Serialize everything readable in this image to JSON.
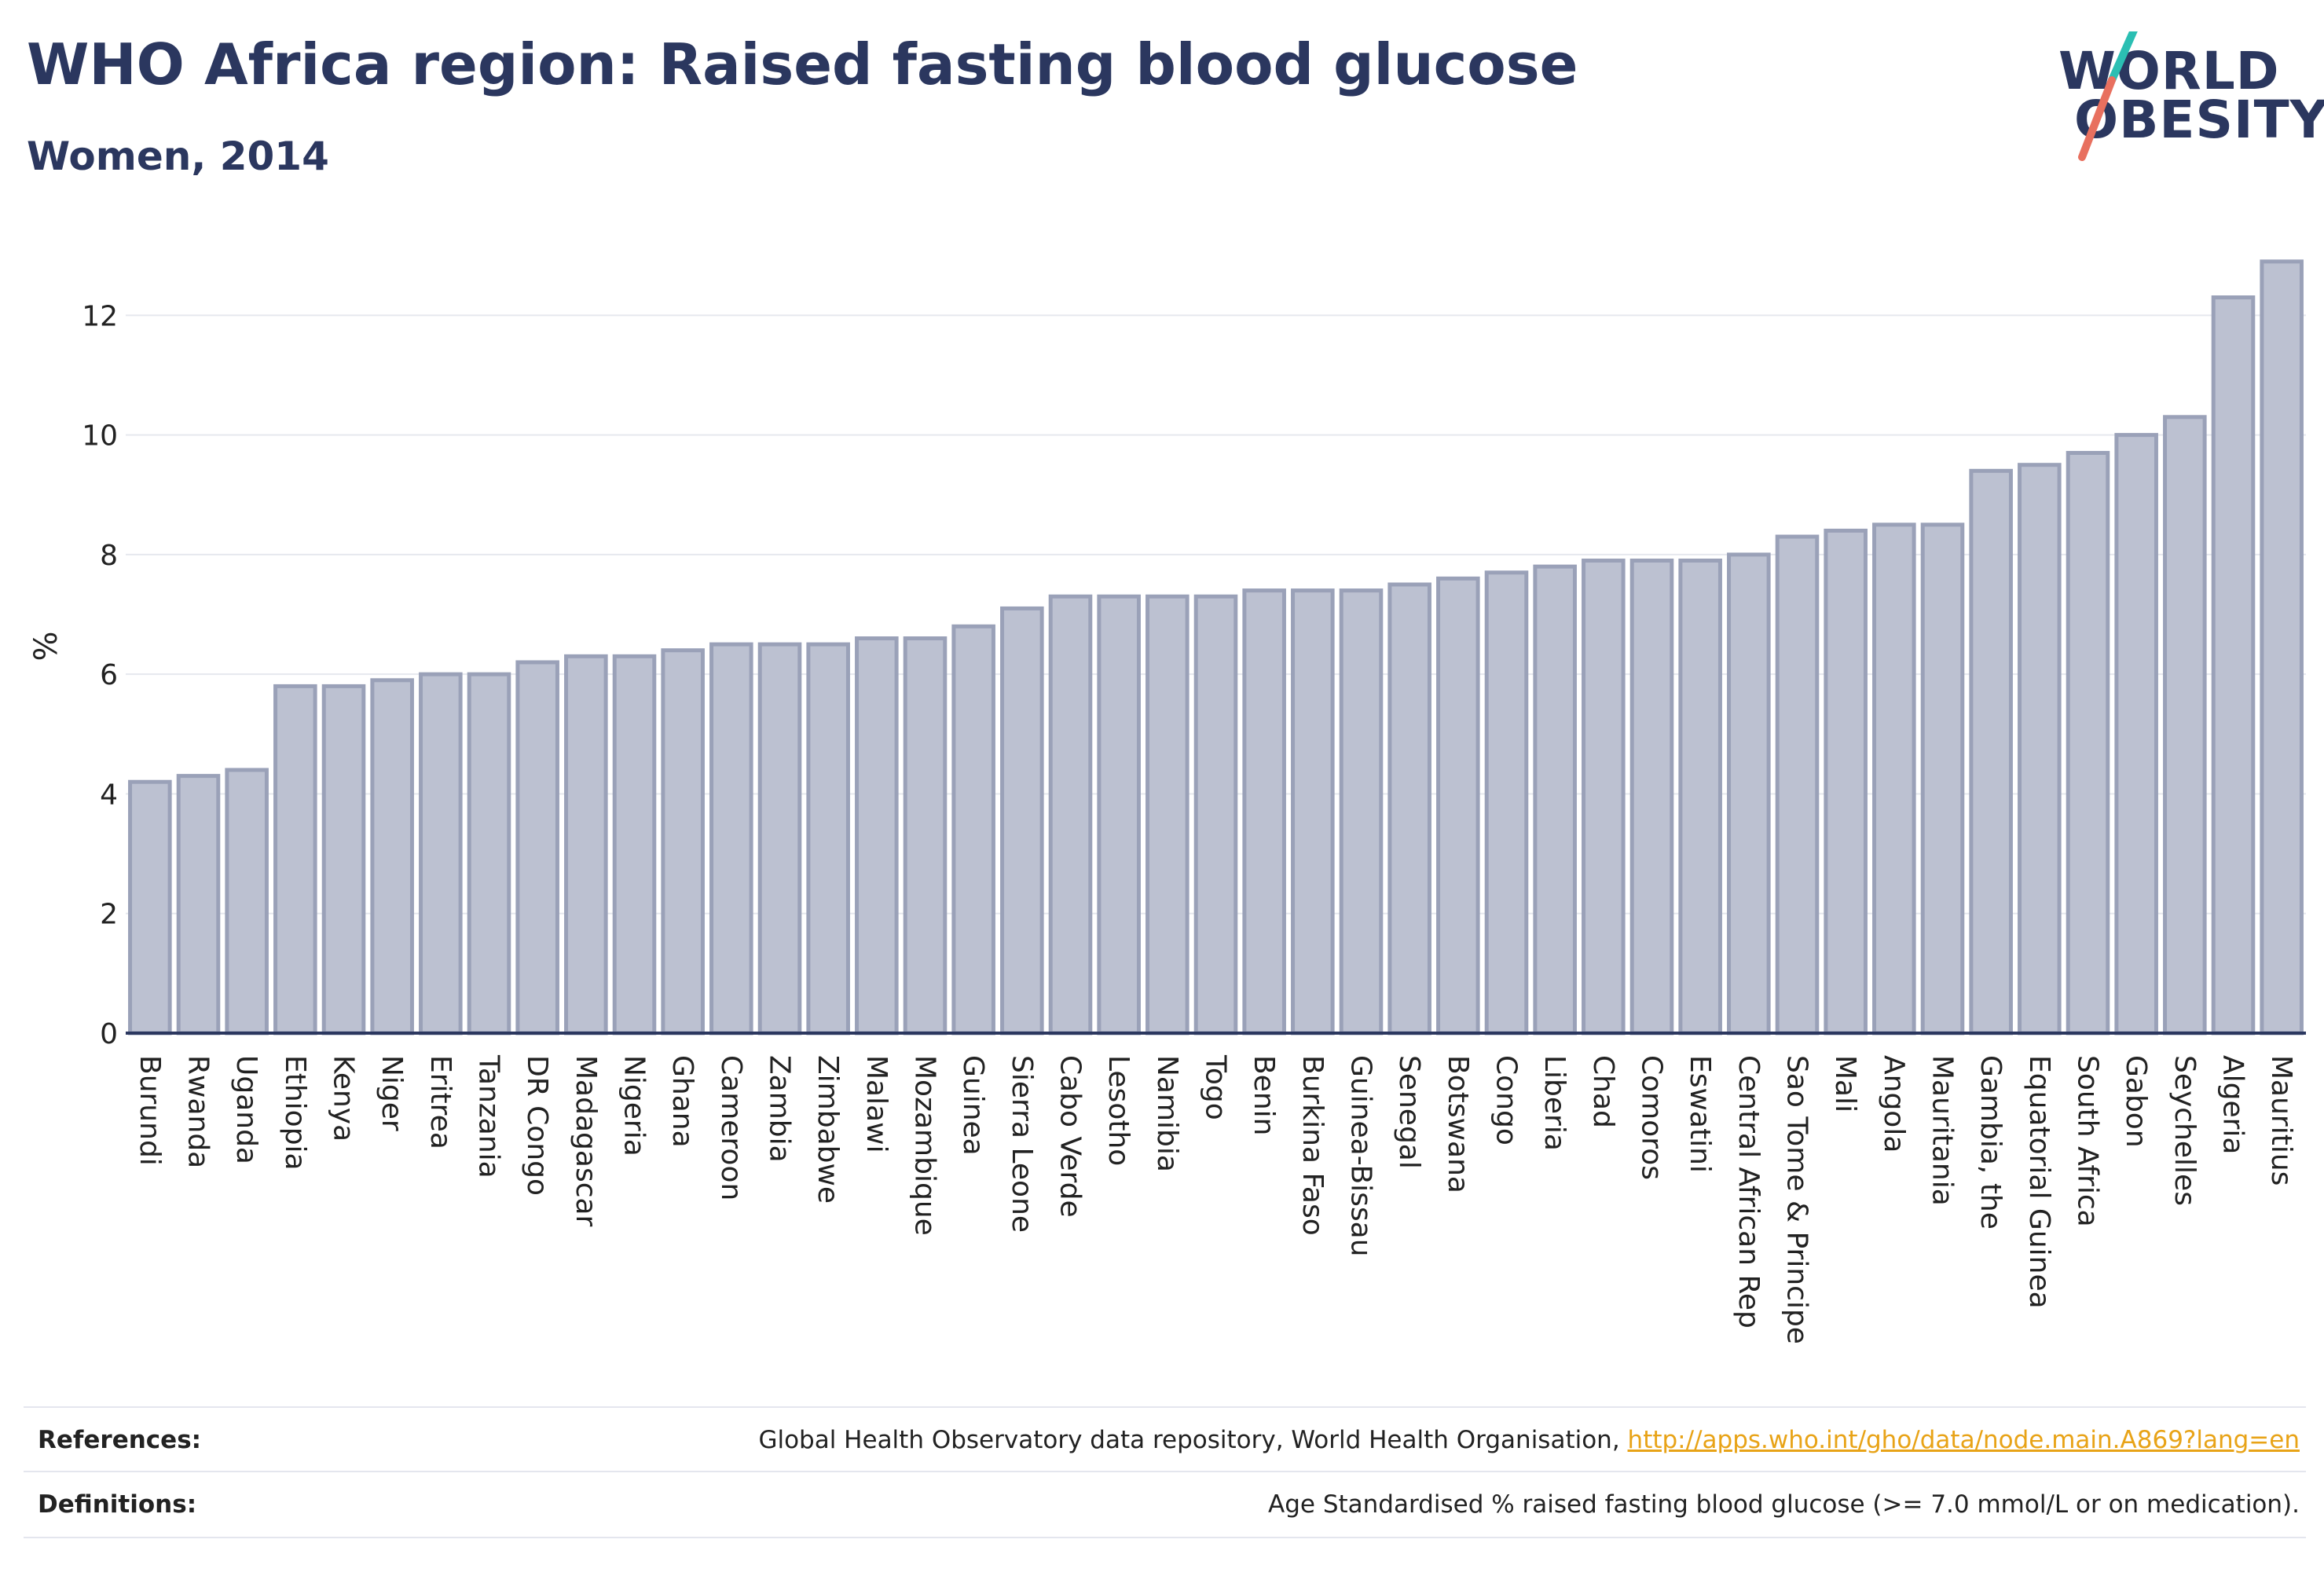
{
  "header": {
    "title": "WHO Africa region: Raised fasting blood glucose",
    "subtitle": "Women, 2014"
  },
  "logo": {
    "line1": "WORLD",
    "line2": "OBESITY",
    "colors": {
      "text": "#2b375f",
      "slash_top": "#2bbfb3",
      "slash_bottom": "#e8705f"
    }
  },
  "chart_data": {
    "type": "bar",
    "title": "WHO Africa region: Raised fasting blood glucose",
    "subtitle": "Women, 2014",
    "xlabel": "",
    "ylabel": "%",
    "ylim": [
      0,
      13.2
    ],
    "yticks": [
      0,
      2,
      4,
      6,
      8,
      10,
      12
    ],
    "grid": true,
    "legend": "none",
    "colors": {
      "bar_fill": "#bcc1d1",
      "bar_stroke": "#9aa1b8",
      "grid": "#e6e8ee",
      "axis": "#2b375f"
    },
    "categories": [
      "Burundi",
      "Rwanda",
      "Uganda",
      "Ethiopia",
      "Kenya",
      "Niger",
      "Eritrea",
      "Tanzania",
      "DR Congo",
      "Madagascar",
      "Nigeria",
      "Ghana",
      "Cameroon",
      "Zambia",
      "Zimbabwe",
      "Malawi",
      "Mozambique",
      "Guinea",
      "Sierra Leone",
      "Cabo Verde",
      "Lesotho",
      "Namibia",
      "Togo",
      "Benin",
      "Burkina Faso",
      "Guinea-Bissau",
      "Senegal",
      "Botswana",
      "Congo",
      "Liberia",
      "Chad",
      "Comoros",
      "Eswatini",
      "Central African Rep",
      "Sao Tome & Principe",
      "Mali",
      "Angola",
      "Mauritania",
      "Gambia, the",
      "Equatorial Guinea",
      "South Africa",
      "Gabon",
      "Seychelles",
      "Algeria",
      "Mauritius"
    ],
    "values": [
      4.2,
      4.3,
      4.4,
      5.8,
      5.8,
      5.9,
      6.0,
      6.0,
      6.2,
      6.3,
      6.3,
      6.4,
      6.5,
      6.5,
      6.5,
      6.6,
      6.6,
      6.8,
      7.1,
      7.3,
      7.3,
      7.3,
      7.3,
      7.4,
      7.4,
      7.4,
      7.5,
      7.6,
      7.7,
      7.8,
      7.9,
      7.9,
      7.9,
      8.0,
      8.3,
      8.4,
      8.5,
      8.5,
      9.4,
      9.5,
      9.7,
      10.0,
      10.3,
      12.3,
      12.9
    ]
  },
  "footer": {
    "references_label": "References:",
    "references_text": "Global Health Observatory data repository, World Health Organisation, ",
    "references_link": "http://apps.who.int/gho/data/node.main.A869?lang=en",
    "definitions_label": "Definitions:",
    "definitions_text": "Age Standardised % raised fasting blood glucose (>= 7.0 mmol/L or on medication)."
  }
}
